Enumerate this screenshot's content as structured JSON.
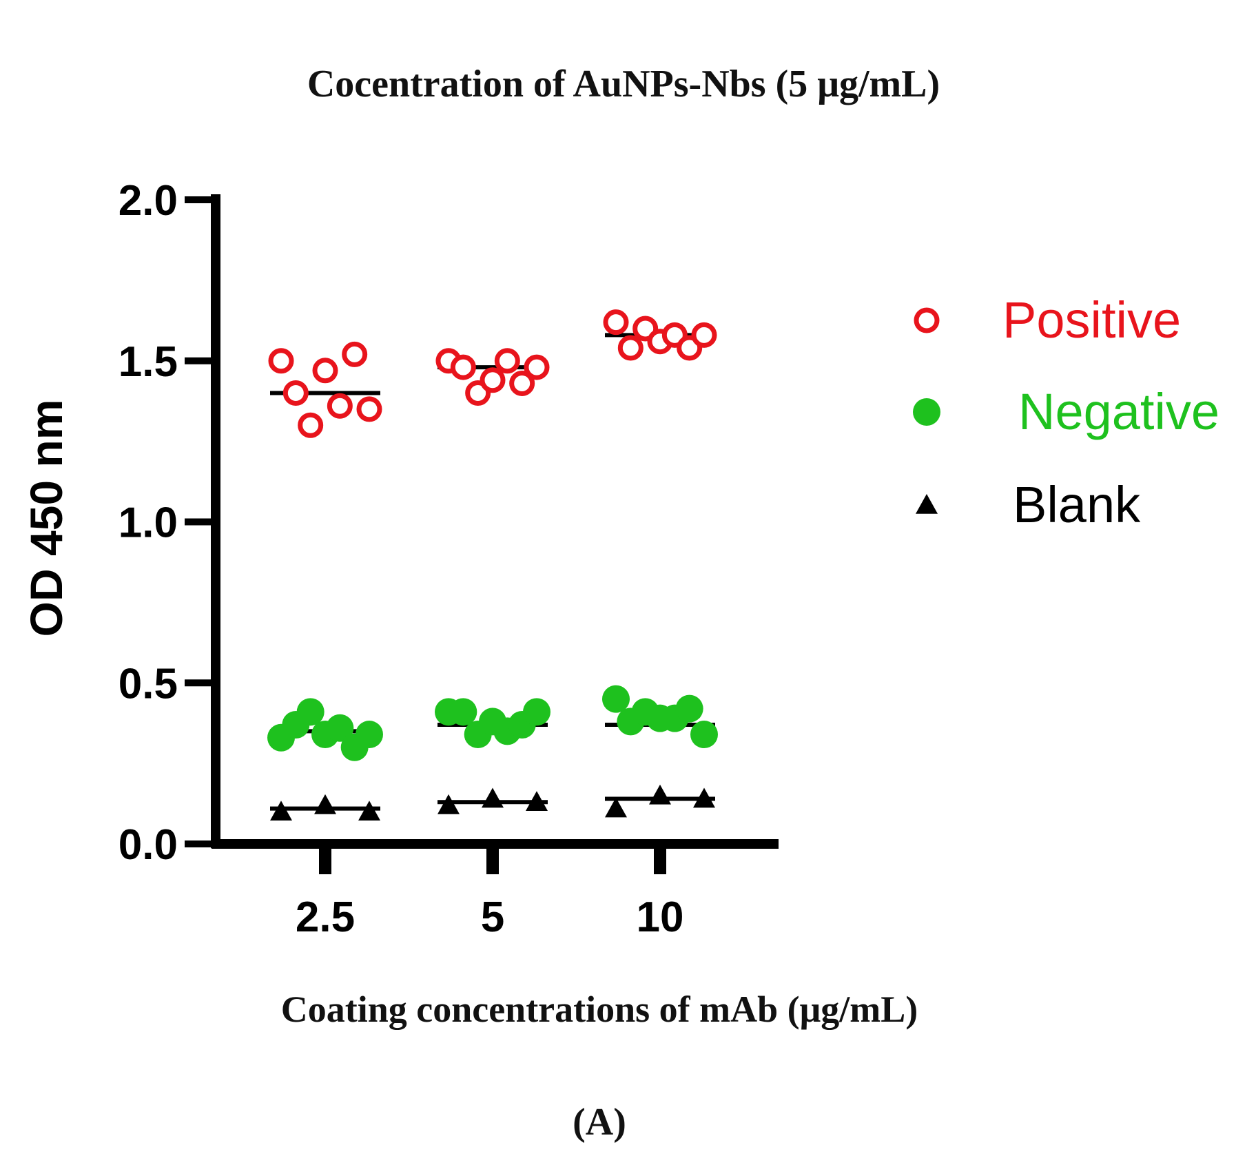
{
  "panel_label": "(A)",
  "chart_data": {
    "type": "scatter",
    "title": "Cocentration of AuNPs-Nbs (5 μg/mL)",
    "xlabel": "Coating concentrations of mAb (μg/mL)",
    "ylabel": "OD 450 nm",
    "categories": [
      "2.5",
      "5",
      "10"
    ],
    "ylim": [
      0.0,
      2.0
    ],
    "yticks": [
      "0.0",
      "0.5",
      "1.0",
      "1.5",
      "2.0"
    ],
    "grid": false,
    "legend_position": "right",
    "series": [
      {
        "name": "Positive",
        "marker": "open-circle",
        "color": "#e8141c",
        "mean": [
          1.4,
          1.48,
          1.58
        ],
        "points": [
          [
            1.5,
            1.4,
            1.3,
            1.47,
            1.36,
            1.52,
            1.35
          ],
          [
            1.5,
            1.48,
            1.4,
            1.44,
            1.5,
            1.43,
            1.48
          ],
          [
            1.62,
            1.54,
            1.6,
            1.56,
            1.58,
            1.54,
            1.58
          ]
        ]
      },
      {
        "name": "Negative",
        "marker": "filled-circle",
        "color": "#1ec11e",
        "mean": [
          0.35,
          0.37,
          0.37
        ],
        "points": [
          [
            0.33,
            0.37,
            0.41,
            0.34,
            0.36,
            0.3,
            0.34
          ],
          [
            0.41,
            0.41,
            0.34,
            0.38,
            0.35,
            0.37,
            0.41
          ],
          [
            0.45,
            0.38,
            0.41,
            0.39,
            0.39,
            0.42,
            0.34
          ]
        ]
      },
      {
        "name": "Blank",
        "marker": "filled-triangle",
        "color": "#000000",
        "mean": [
          0.11,
          0.13,
          0.14
        ],
        "points": [
          [
            0.1,
            0.12,
            0.1
          ],
          [
            0.12,
            0.14,
            0.13
          ],
          [
            0.11,
            0.15,
            0.14
          ]
        ]
      }
    ]
  }
}
